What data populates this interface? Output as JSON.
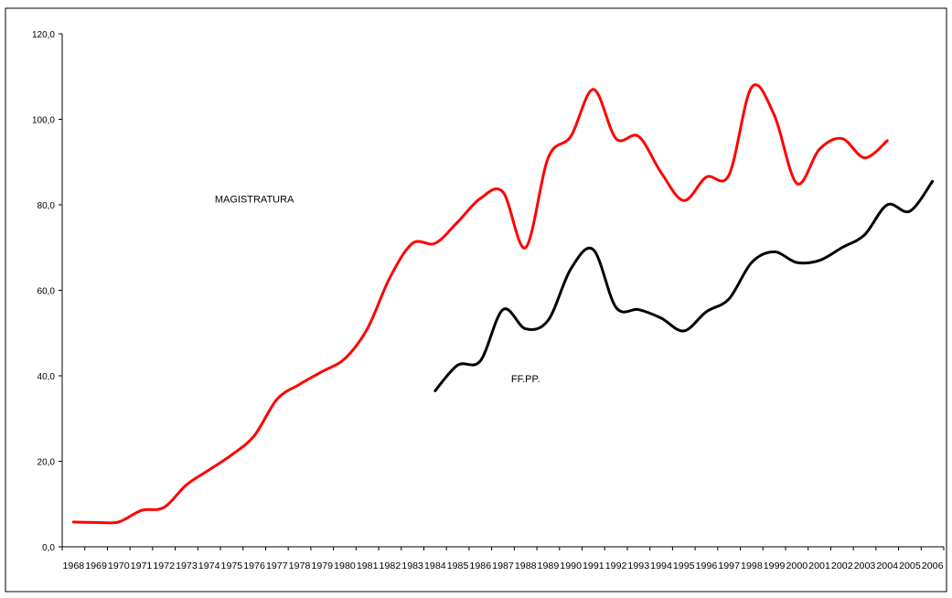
{
  "chart_data": {
    "type": "line",
    "title": "",
    "xlabel": "",
    "ylabel": "",
    "ylim": [
      0,
      120
    ],
    "yticks": [
      0,
      20,
      40,
      60,
      80,
      100,
      120
    ],
    "ytick_labels": [
      "0,0",
      "20,0",
      "40,0",
      "60,0",
      "80,0",
      "100,0",
      "120,0"
    ],
    "categories": [
      "1968",
      "1969",
      "1970",
      "1971",
      "1972",
      "1973",
      "1974",
      "1975",
      "1976",
      "1977",
      "1978",
      "1979",
      "1980",
      "1981",
      "1982",
      "1983",
      "1984",
      "1985",
      "1986",
      "1987",
      "1988",
      "1989",
      "1990",
      "1991",
      "1992",
      "1993",
      "1994",
      "1995",
      "1996",
      "1997",
      "1998",
      "1999",
      "2000",
      "2001",
      "2002",
      "2003",
      "2004",
      "2005",
      "2006"
    ],
    "grid": false,
    "legend": "none",
    "series": [
      {
        "name": "MAGISTRATURA",
        "color": "#ff0000",
        "values": [
          5.8,
          5.7,
          5.8,
          8.5,
          9.2,
          14.5,
          18.0,
          21.5,
          26.0,
          34.5,
          38.0,
          41.0,
          44.0,
          51.0,
          63.0,
          71.0,
          71.0,
          76.0,
          81.5,
          83.0,
          70.0,
          91.0,
          96.0,
          107.0,
          95.5,
          96.0,
          87.5,
          81.0,
          86.5,
          87.0,
          107.5,
          101.0,
          85.0,
          93.0,
          95.5,
          91.0,
          95.0,
          null,
          null
        ]
      },
      {
        "name": "FF.PP.",
        "color": "#000000",
        "values": [
          null,
          null,
          null,
          null,
          null,
          null,
          null,
          null,
          null,
          null,
          null,
          null,
          null,
          null,
          null,
          null,
          36.5,
          42.5,
          43.5,
          55.5,
          51.0,
          53.0,
          65.0,
          69.5,
          56.0,
          55.5,
          53.5,
          50.5,
          55.0,
          58.0,
          66.5,
          69.0,
          66.5,
          67.0,
          70.0,
          73.0,
          80.0,
          78.5,
          85.5
        ]
      }
    ],
    "annotations": [
      {
        "text": "MAGISTRATURA",
        "x": "1976",
        "y": 80.5
      },
      {
        "text": "FF.PP.",
        "x": "1988",
        "y": 38.5
      }
    ]
  }
}
